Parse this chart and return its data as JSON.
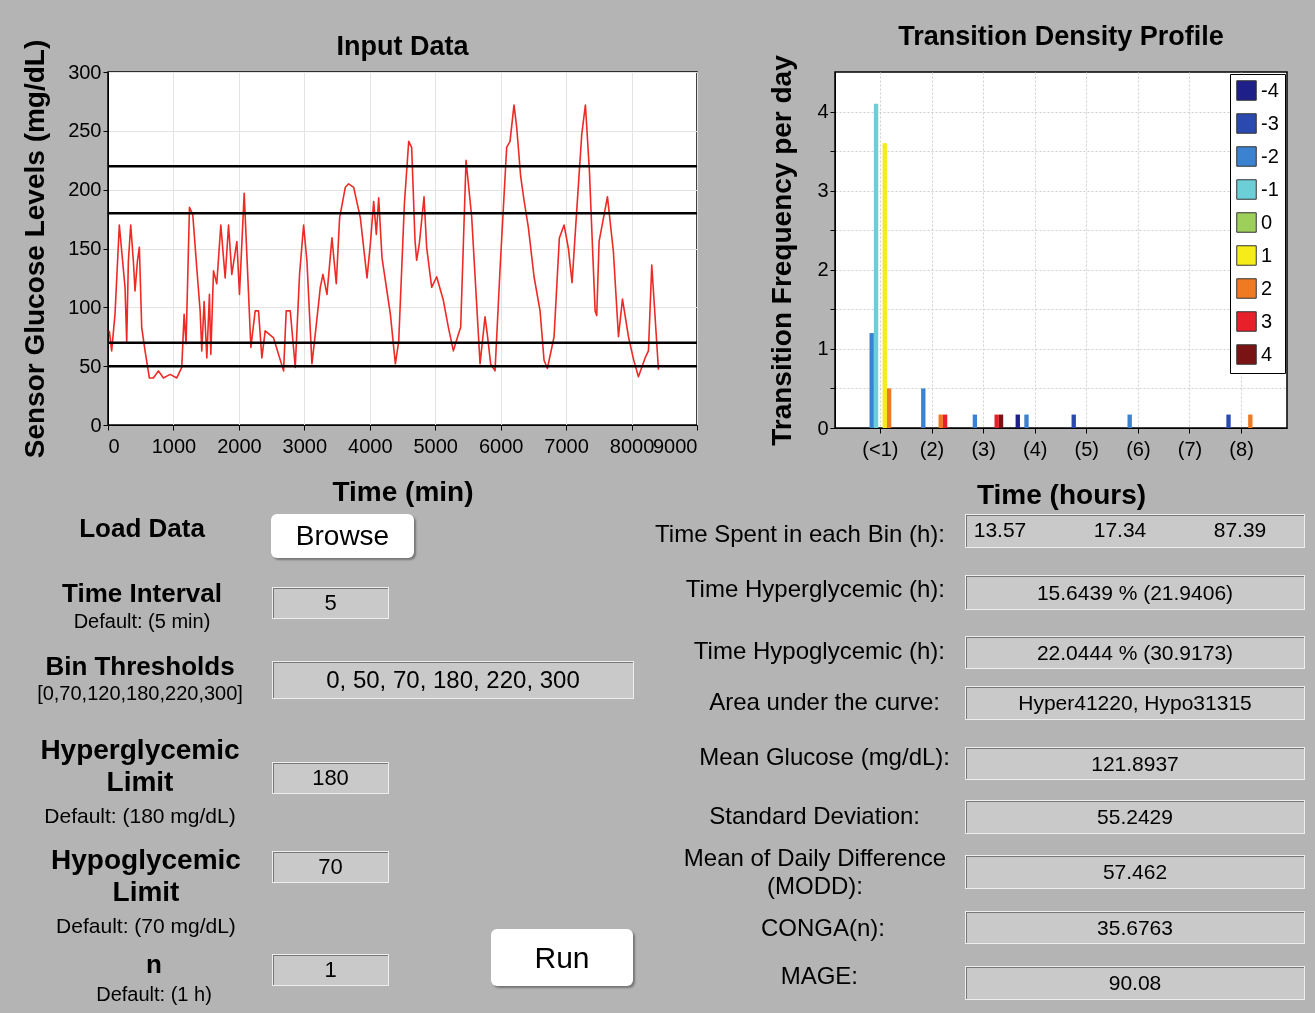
{
  "chart_data": [
    {
      "type": "line",
      "title": "Input Data",
      "xlabel": "Time (min)",
      "ylabel": "Sensor Glucose Levels (mg/dL)",
      "x": [
        20,
        56,
        107,
        173,
        260,
        286,
        311,
        347,
        388,
        413,
        449,
        479,
        515,
        566,
        632,
        694,
        770,
        847,
        949,
        1051,
        1127,
        1163,
        1193,
        1245,
        1295,
        1357,
        1408,
        1433,
        1469,
        1510,
        1550,
        1571,
        1612,
        1662,
        1724,
        1790,
        1842,
        1892,
        1969,
        2009,
        2081,
        2183,
        2249,
        2300,
        2351,
        2402,
        2530,
        2683,
        2723,
        2785,
        2861,
        2927,
        2989,
        3040,
        3116,
        3167,
        3244,
        3284,
        3346,
        3422,
        3488,
        3539,
        3626,
        3677,
        3754,
        3856,
        3958,
        4009,
        4060,
        4100,
        4136,
        4187,
        4315,
        4391,
        4442,
        4529,
        4595,
        4640,
        4691,
        4716,
        4757,
        4829,
        4869,
        4946,
        5022,
        5124,
        5201,
        5277,
        5353,
        5389,
        5471,
        5557,
        5685,
        5761,
        5796,
        5847,
        5914,
        5990,
        6092,
        6143,
        6204,
        6245,
        6306,
        6357,
        6423,
        6510,
        6602,
        6663,
        6714,
        6816,
        6897,
        6969,
        7035,
        7091,
        7162,
        7239,
        7295,
        7356,
        7443,
        7468,
        7504,
        7632,
        7723,
        7800,
        7861,
        7953,
        8029,
        8105,
        8207,
        8258,
        8309,
        8411
      ],
      "series": [
        {
          "color": "#ee2a24",
          "values": [
            80,
            63,
            94,
            170,
            117,
            71,
            139,
            170,
            139,
            114,
            139,
            151,
            83,
            63,
            40,
            40,
            46,
            40,
            43,
            40,
            49,
            94,
            69,
            185,
            179,
            133,
            97,
            63,
            105,
            57,
            111,
            60,
            131,
            120,
            170,
            125,
            170,
            128,
            156,
            111,
            197,
            66,
            97,
            97,
            57,
            80,
            74,
            46,
            97,
            97,
            49,
            128,
            170,
            139,
            52,
            77,
            117,
            128,
            111,
            159,
            120,
            176,
            202,
            205,
            202,
            176,
            125,
            154,
            190,
            162,
            193,
            142,
            94,
            52,
            71,
            188,
            241,
            236,
            157,
            140,
            154,
            194,
            151,
            117,
            126,
            106,
            83,
            63,
            77,
            83,
            225,
            177,
            52,
            92,
            77,
            52,
            46,
            132,
            236,
            241,
            272,
            253,
            211,
            191,
            168,
            126,
            97,
            55,
            48,
            75,
            159,
            170,
            150,
            121,
            182,
            247,
            272,
            216,
            97,
            93,
            156,
            194,
            147,
            75,
            107,
            75,
            56,
            41,
            57,
            63,
            136,
            47
          ]
        }
      ],
      "xlim": [
        0,
        9000
      ],
      "xticks": [
        0,
        1000,
        2000,
        3000,
        4000,
        5000,
        6000,
        7000,
        8000,
        9000
      ],
      "ylim": [
        0,
        300
      ],
      "yticks": [
        0,
        50,
        100,
        150,
        200,
        250,
        300
      ],
      "grid": true,
      "ref_lines": [
        {
          "axis": "y",
          "value": 220,
          "color": "#000000"
        },
        {
          "axis": "y",
          "value": 180,
          "color": "#000000"
        },
        {
          "axis": "y",
          "value": 70,
          "color": "#000000"
        },
        {
          "axis": "y",
          "value": 50,
          "color": "#000000"
        }
      ]
    },
    {
      "type": "bar",
      "title": "Transition Density Profile",
      "xlabel": "Time (hours)",
      "ylabel": "Transition Frequency per day",
      "categories": [
        "(<1)",
        "(2)",
        "(3)",
        "(4)",
        "(5)",
        "(6)",
        "(7)",
        "(8)"
      ],
      "series": [
        {
          "name": "-4",
          "color": "#1f1f8a",
          "values": [
            0,
            0,
            0,
            0.17,
            0,
            0,
            0,
            0
          ]
        },
        {
          "name": "-3",
          "color": "#2a4ab0",
          "values": [
            0,
            0,
            0,
            0,
            0.17,
            0,
            0,
            0.17
          ]
        },
        {
          "name": "-2",
          "color": "#3b82d0",
          "values": [
            1.2,
            0.5,
            0.17,
            0.17,
            0,
            0.17,
            0,
            0
          ]
        },
        {
          "name": "-1",
          "color": "#6ccfd8",
          "values": [
            4.1,
            0,
            0,
            0,
            0,
            0,
            0,
            0
          ]
        },
        {
          "name": "0",
          "color": "#9ecf5a",
          "values": [
            0,
            0,
            0,
            0,
            0,
            0,
            0,
            0
          ]
        },
        {
          "name": "1",
          "color": "#f5ec1a",
          "values": [
            3.6,
            0,
            0,
            0,
            0,
            0,
            0,
            0
          ]
        },
        {
          "name": "2",
          "color": "#f07a22",
          "values": [
            0.5,
            0.17,
            0,
            0,
            0,
            0,
            0,
            0.17
          ]
        },
        {
          "name": "3",
          "color": "#e8202a",
          "values": [
            0,
            0.17,
            0.17,
            0,
            0,
            0,
            0,
            0
          ]
        },
        {
          "name": "4",
          "color": "#7a1414",
          "values": [
            0,
            0,
            0.17,
            0,
            0,
            0,
            0,
            0
          ]
        }
      ],
      "ylim": [
        0,
        4.5
      ],
      "yticks": [
        0,
        {
          "value": 0.5,
          "label": null
        },
        1,
        {
          "value": 1.5,
          "label": null
        },
        2,
        {
          "value": 2.5,
          "label": null
        },
        3,
        {
          "value": 3.5,
          "label": null
        },
        4
      ],
      "grid": true,
      "legend": "top right"
    },
    {
      "type": "other",
      "annotations": [
        "Load Data",
        "Browse",
        "Time Interval",
        "Default: (5 min)",
        "5",
        "Bin Thresholds",
        "[0,70,120,180,220,300]",
        "0, 50, 70, 180, 220, 300",
        "Hyperglycemic Limit",
        "Default: (180 mg/dL)",
        "180",
        "Hypoglycemic Limit",
        "Default: (70 mg/dL)",
        "70",
        "n",
        "Default: (1 h)",
        "1",
        "Run",
        "Time Spent in each Bin (h):",
        "13.57",
        "17.34",
        "87.39",
        "Time Hyperglycemic (h):",
        "15.6439 % (21.9406)",
        "Time Hypoglycemic (h):",
        "22.0444 % (30.9173)",
        "Area under the curve:",
        "Hyper41220, Hypo31315",
        "Mean Glucose (mg/dL):",
        "121.8937",
        "Standard Deviation:",
        "55.2429",
        "Mean of Daily Difference (MODD):",
        "57.462",
        "CONGA(n):",
        "35.6763",
        "MAGE:",
        "90.08"
      ]
    }
  ]
}
